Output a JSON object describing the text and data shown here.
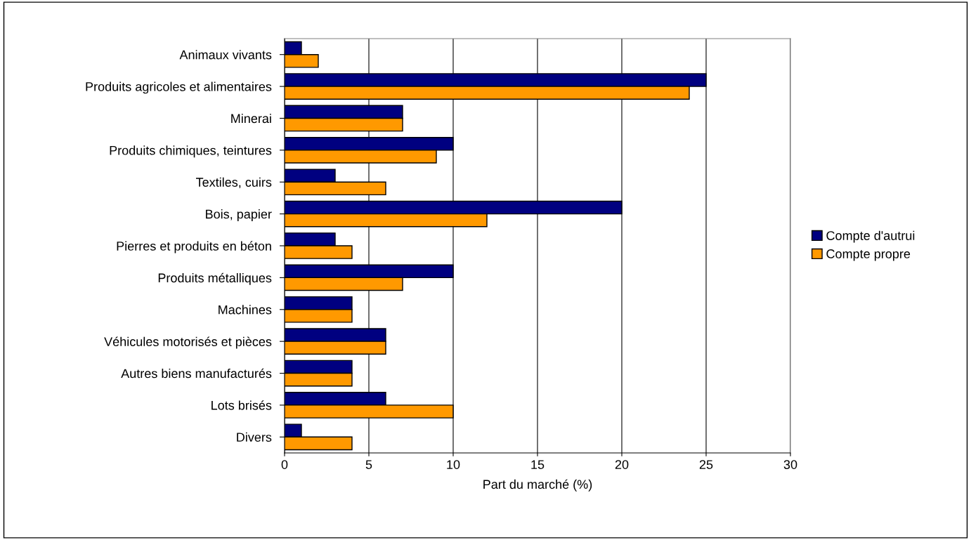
{
  "chart_data": {
    "type": "bar",
    "orientation": "horizontal",
    "xlabel": "Part du marché (%)",
    "categories": [
      "Animaux vivants",
      "Produits agricoles et alimentaires",
      "Minerai",
      "Produits chimiques, teintures",
      "Textiles, cuirs",
      "Bois, papier",
      "Pierres et produits en béton",
      "Produits métalliques",
      "Machines",
      "Véhicules motorisés et pièces",
      "Autres biens manufacturés",
      "Lots brisés",
      "Divers"
    ],
    "series": [
      {
        "name": "Compte d'autrui",
        "color": "#000080",
        "values": [
          1,
          25,
          7,
          10,
          3,
          20,
          3,
          10,
          4,
          6,
          4,
          6,
          1
        ]
      },
      {
        "name": "Compte propre",
        "color": "#ff9900",
        "values": [
          2,
          24,
          7,
          9,
          6,
          12,
          4,
          7,
          4,
          6,
          4,
          10,
          4
        ]
      }
    ],
    "xlim": [
      0,
      30
    ],
    "xticks": [
      0,
      5,
      10,
      15,
      20,
      25,
      30
    ],
    "grid": "x",
    "legend": "right"
  }
}
